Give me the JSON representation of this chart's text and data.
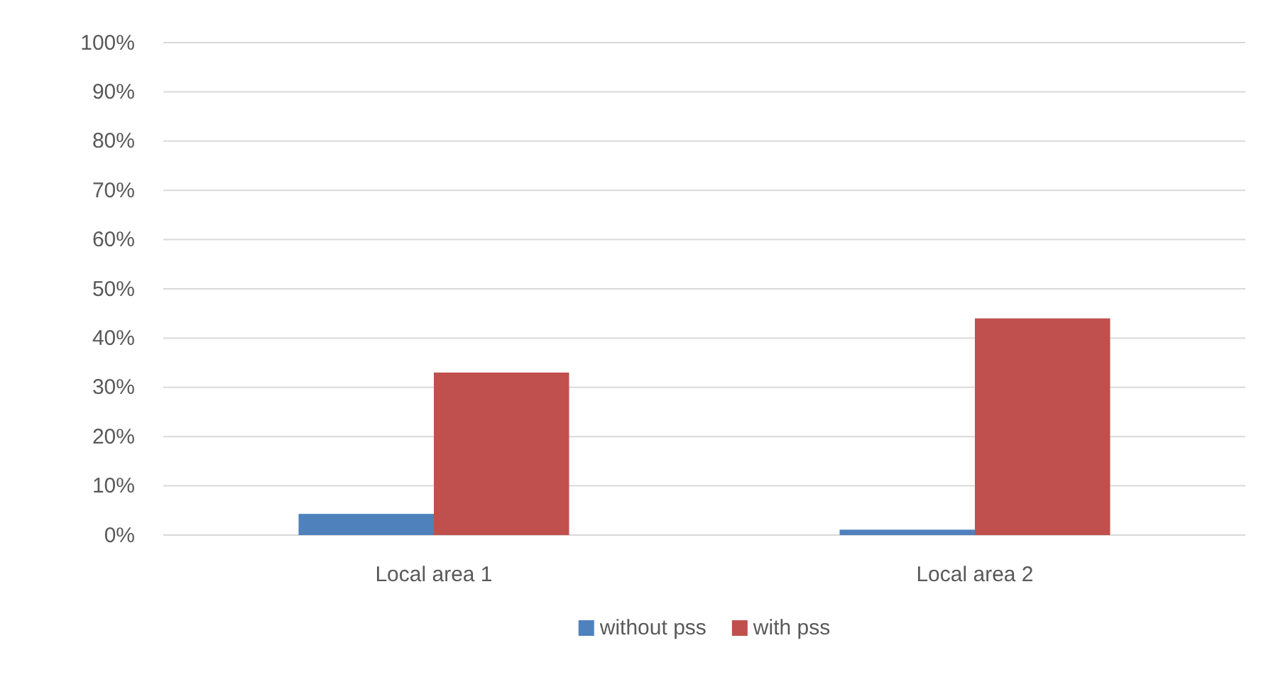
{
  "chart_data": {
    "type": "bar",
    "categories": [
      "Local area 1",
      "Local area 2"
    ],
    "series": [
      {
        "name": "without pss",
        "color": "#4f81bd",
        "values": [
          4.3,
          1.1
        ]
      },
      {
        "name": "with pss",
        "color": "#c0504d",
        "values": [
          33,
          44
        ]
      }
    ],
    "ylim": [
      0,
      100
    ],
    "yticks": [
      {
        "value": 0,
        "label": "0%"
      },
      {
        "value": 10,
        "label": "10%"
      },
      {
        "value": 20,
        "label": "20%"
      },
      {
        "value": 30,
        "label": "30%"
      },
      {
        "value": 40,
        "label": "40%"
      },
      {
        "value": 50,
        "label": "50%"
      },
      {
        "value": 60,
        "label": "60%"
      },
      {
        "value": 70,
        "label": "70%"
      },
      {
        "value": 80,
        "label": "80%"
      },
      {
        "value": 90,
        "label": "90%"
      },
      {
        "value": 100,
        "label": "100%"
      }
    ],
    "grid": "y",
    "legend": "bottom"
  }
}
